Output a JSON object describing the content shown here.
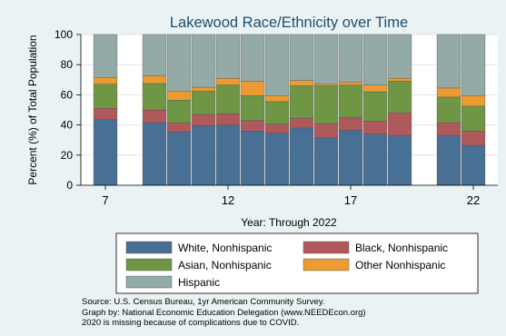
{
  "chart_data": {
    "type": "bar",
    "stacked": true,
    "title": "Lakewood Race/Ethnicity over Time",
    "xlabel": "Year: Through 2022",
    "ylabel": "Percent (%) of Total Population",
    "x_ticks": [
      "7",
      "12",
      "17",
      "22"
    ],
    "y_ticks": [
      "0",
      "20",
      "40",
      "60",
      "80",
      "100"
    ],
    "ylim": [
      0,
      100
    ],
    "xlim": [
      6,
      23
    ],
    "grid": true,
    "legend_position": "bottom",
    "x": [
      7,
      9,
      10,
      11,
      12,
      13,
      14,
      15,
      16,
      17,
      18,
      19,
      21,
      22
    ],
    "series": [
      {
        "name": "White, Nonhispanic",
        "color": "#486f94",
        "values": [
          43.5,
          41.5,
          35.5,
          39.5,
          40.0,
          36.0,
          34.5,
          38.0,
          31.5,
          36.5,
          34.0,
          33.0,
          33.0,
          26.5
        ]
      },
      {
        "name": "Black, Nonhispanic",
        "color": "#b0595d",
        "values": [
          7.5,
          8.5,
          6.0,
          7.5,
          7.5,
          7.0,
          6.0,
          6.5,
          9.5,
          8.5,
          8.5,
          15.0,
          8.5,
          9.5
        ]
      },
      {
        "name": "Asian, Nonhispanic",
        "color": "#6f9645",
        "values": [
          16.0,
          17.5,
          15.0,
          15.5,
          19.0,
          16.5,
          15.0,
          21.5,
          25.0,
          21.5,
          19.5,
          21.0,
          17.0,
          16.5
        ]
      },
      {
        "name": "Other Nonhispanic",
        "color": "#eb9b31",
        "values": [
          4.5,
          5.0,
          6.0,
          2.5,
          4.5,
          9.5,
          4.0,
          3.5,
          1.0,
          2.0,
          4.5,
          2.0,
          6.0,
          7.0
        ]
      },
      {
        "name": "Hispanic",
        "color": "#93aaa7",
        "values": [
          28.5,
          27.5,
          37.5,
          35.0,
          29.0,
          31.0,
          40.5,
          30.5,
          33.0,
          31.5,
          33.5,
          29.0,
          35.5,
          40.5
        ]
      }
    ]
  },
  "notes": {
    "source": "Source:  U.S. Census Bureau, 1yr American Community Survey.",
    "credit": "Graph by: National Economic Education Delegation (www.NEEDEcon.org)",
    "missing": "2020 is missing because of complications due to COVID."
  }
}
